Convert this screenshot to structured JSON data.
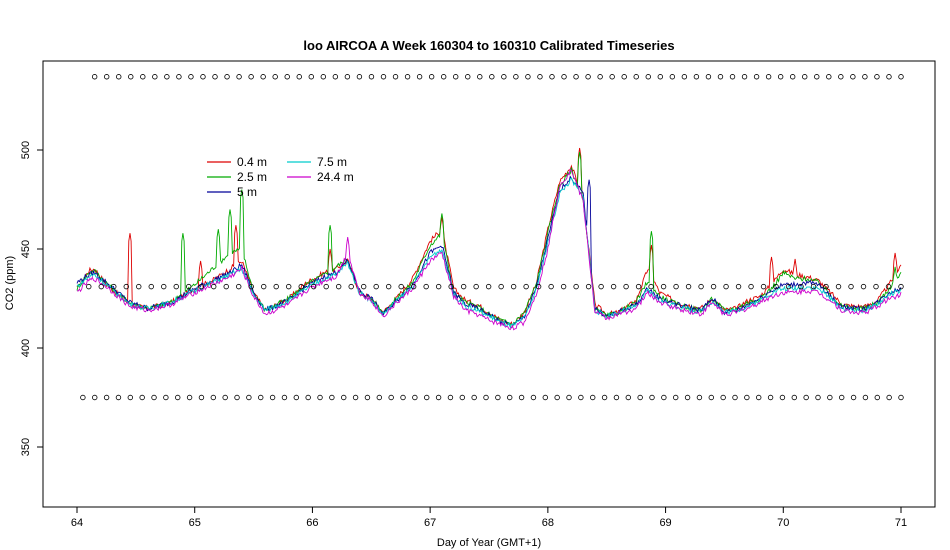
{
  "chart_data": {
    "type": "line",
    "title": "loo AIRCOA A  Week 160304 to 160310  Calibrated Timeseries",
    "xlabel": "Day of Year (GMT+1)",
    "ylabel": "CO2 (ppm)",
    "xlim": [
      64,
      71
    ],
    "ylim": [
      320,
      541
    ],
    "x_ticks": [
      64,
      65,
      66,
      67,
      68,
      69,
      70,
      71
    ],
    "y_ticks": [
      350,
      400,
      450,
      500
    ],
    "grid": false,
    "legend_position": "top-left",
    "legend_columns": 2,
    "base_x": [
      64.0,
      64.1,
      64.15,
      64.25,
      64.35,
      64.45,
      64.6,
      64.8,
      65.0,
      65.15,
      65.3,
      65.4,
      65.5,
      65.6,
      65.8,
      65.95,
      66.1,
      66.2,
      66.3,
      66.4,
      66.5,
      66.6,
      66.7,
      66.85,
      67.0,
      67.1,
      67.2,
      67.3,
      67.4,
      67.5,
      67.6,
      67.7,
      67.8,
      67.9,
      68.0,
      68.1,
      68.2,
      68.3,
      68.4,
      68.5,
      68.6,
      68.75,
      68.85,
      68.95,
      69.1,
      69.3,
      69.4,
      69.5,
      69.6,
      69.7,
      69.8,
      69.9,
      70.0,
      70.1,
      70.2,
      70.3,
      70.4,
      70.5,
      70.6,
      70.7,
      70.8,
      70.9,
      71.0
    ],
    "series": [
      {
        "name": "0.4 m",
        "color": "#dd0000",
        "values": [
          430,
          439,
          440,
          432,
          427,
          422,
          420,
          423,
          430,
          434,
          440,
          444,
          428,
          419,
          425,
          433,
          438,
          440,
          444,
          428,
          425,
          418,
          424,
          435,
          454,
          460,
          430,
          424,
          422,
          418,
          414,
          412,
          418,
          432,
          460,
          484,
          492,
          475,
          422,
          417,
          418,
          424,
          440,
          428,
          423,
          420,
          425,
          419,
          420,
          424,
          426,
          432,
          440,
          437,
          436,
          434,
          428,
          422,
          421,
          421,
          424,
          432,
          442
        ],
        "spikes": [
          [
            64.45,
            458
          ],
          [
            65.05,
            444
          ],
          [
            65.35,
            462
          ],
          [
            66.15,
            450
          ],
          [
            67.1,
            466
          ],
          [
            68.27,
            501
          ],
          [
            68.88,
            452
          ],
          [
            69.9,
            446
          ],
          [
            70.1,
            445
          ],
          [
            70.95,
            448
          ]
        ]
      },
      {
        "name": "2.5 m",
        "color": "#00aa00",
        "values": [
          430,
          438,
          439,
          433,
          427,
          423,
          420,
          423,
          432,
          440,
          448,
          450,
          428,
          419,
          425,
          432,
          437,
          441,
          445,
          428,
          425,
          418,
          424,
          433,
          452,
          458,
          428,
          423,
          421,
          417,
          414,
          412,
          418,
          432,
          458,
          482,
          490,
          474,
          420,
          416,
          418,
          423,
          434,
          426,
          422,
          419,
          425,
          419,
          420,
          423,
          425,
          430,
          438,
          435,
          435,
          433,
          427,
          421,
          420,
          420,
          423,
          430,
          438
        ],
        "spikes": [
          [
            64.9,
            458
          ],
          [
            65.2,
            460
          ],
          [
            65.3,
            470
          ],
          [
            65.4,
            480
          ],
          [
            66.15,
            462
          ],
          [
            67.1,
            468
          ],
          [
            68.27,
            499
          ],
          [
            68.88,
            459
          ],
          [
            70.95,
            441
          ]
        ]
      },
      {
        "name": "5 m",
        "color": "#000099",
        "values": [
          433,
          437,
          438,
          433,
          428,
          423,
          420,
          423,
          430,
          434,
          438,
          442,
          428,
          419,
          424,
          431,
          436,
          438,
          444,
          429,
          425,
          417,
          423,
          432,
          448,
          452,
          428,
          422,
          420,
          417,
          413,
          411,
          416,
          430,
          455,
          480,
          486,
          478,
          420,
          416,
          418,
          422,
          430,
          425,
          422,
          419,
          425,
          418,
          419,
          422,
          425,
          429,
          432,
          432,
          433,
          432,
          426,
          421,
          420,
          420,
          423,
          428,
          430
        ],
        "spikes": [
          [
            68.35,
            485
          ]
        ]
      },
      {
        "name": "7.5 m",
        "color": "#00cccc",
        "values": [
          431,
          436,
          437,
          432,
          427,
          422,
          420,
          423,
          429,
          433,
          437,
          440,
          427,
          419,
          424,
          430,
          435,
          437,
          443,
          428,
          424,
          417,
          423,
          431,
          446,
          450,
          427,
          421,
          419,
          416,
          413,
          411,
          415,
          429,
          453,
          478,
          485,
          476,
          419,
          416,
          418,
          421,
          429,
          424,
          421,
          418,
          424,
          418,
          419,
          421,
          424,
          428,
          430,
          430,
          431,
          430,
          425,
          420,
          419,
          419,
          422,
          427,
          429
        ],
        "spikes": []
      },
      {
        "name": "24.4 m",
        "color": "#cc00cc",
        "values": [
          428,
          434,
          435,
          431,
          426,
          421,
          419,
          422,
          428,
          432,
          436,
          440,
          426,
          417,
          422,
          429,
          434,
          436,
          448,
          428,
          424,
          416,
          422,
          430,
          444,
          448,
          426,
          419,
          417,
          414,
          412,
          410,
          413,
          427,
          450,
          482,
          490,
          474,
          418,
          415,
          417,
          420,
          428,
          423,
          420,
          417,
          423,
          417,
          418,
          420,
          423,
          426,
          428,
          428,
          429,
          428,
          424,
          419,
          418,
          418,
          421,
          425,
          427
        ],
        "spikes": [
          [
            66.3,
            456
          ]
        ]
      }
    ],
    "markers": [
      {
        "name": "upper",
        "y": 537,
        "x_start": 64.15,
        "x_end": 71.0,
        "count": 68
      },
      {
        "name": "middle",
        "y": 431,
        "x_start": 64.1,
        "x_end": 71.0,
        "count": 66
      },
      {
        "name": "lower",
        "y": 375,
        "x_start": 64.05,
        "x_end": 71.0,
        "count": 70
      }
    ]
  }
}
